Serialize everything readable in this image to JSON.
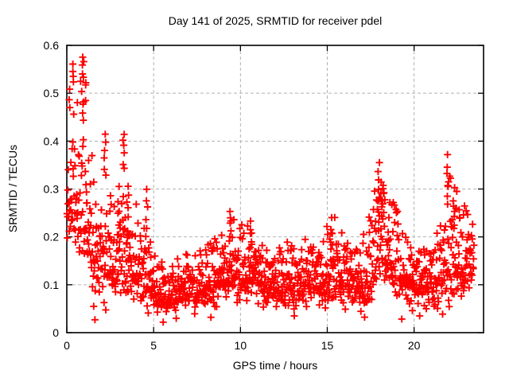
{
  "figure": {
    "background": "#ffffff",
    "text_color": "#000000",
    "border_color": "#000000"
  },
  "chart_data": {
    "type": "scatter",
    "title": "Day 141 of 2025, SRMTID for receiver pdel",
    "xlabel": "GPS time / hours",
    "ylabel": "SRMTID / TECUs",
    "xlim": [
      0,
      24
    ],
    "ylim": [
      0,
      0.6
    ],
    "xticks": [
      0,
      5,
      10,
      15,
      20
    ],
    "yticks": [
      0,
      0.1,
      0.2,
      0.3,
      0.4,
      0.5,
      0.6
    ],
    "grid": {
      "show": true,
      "color": "#b2b2b2",
      "dash": "4 3"
    },
    "legend": "none",
    "marker": {
      "shape": "plus",
      "color": "#ff0000",
      "size": 9,
      "stroke_width": 1.9
    },
    "x_data_range": [
      0.0,
      23.45
    ],
    "n_points": 1400,
    "seed": 141,
    "envelope_note": "per-hour distribution of SRMTID values read from plot: [hour, median, spread, max]",
    "envelope": [
      [
        0.0,
        0.26,
        0.07,
        0.46
      ],
      [
        0.4,
        0.29,
        0.09,
        0.5
      ],
      [
        0.9,
        0.27,
        0.11,
        0.55
      ],
      [
        1.3,
        0.2,
        0.08,
        0.44
      ],
      [
        1.7,
        0.16,
        0.06,
        0.32
      ],
      [
        2.2,
        0.15,
        0.07,
        0.38
      ],
      [
        2.7,
        0.13,
        0.05,
        0.28
      ],
      [
        3.3,
        0.15,
        0.07,
        0.38
      ],
      [
        3.8,
        0.13,
        0.05,
        0.3
      ],
      [
        4.3,
        0.1,
        0.042,
        0.22
      ],
      [
        4.8,
        0.095,
        0.045,
        0.27
      ],
      [
        5.4,
        0.075,
        0.03,
        0.16
      ],
      [
        6.2,
        0.075,
        0.028,
        0.15
      ],
      [
        7.0,
        0.085,
        0.032,
        0.17
      ],
      [
        8.0,
        0.095,
        0.04,
        0.19
      ],
      [
        9.0,
        0.11,
        0.045,
        0.21
      ],
      [
        9.5,
        0.12,
        0.055,
        0.24
      ],
      [
        10.1,
        0.115,
        0.05,
        0.23
      ],
      [
        10.7,
        0.12,
        0.045,
        0.22
      ],
      [
        11.3,
        0.1,
        0.038,
        0.18
      ],
      [
        12.1,
        0.095,
        0.038,
        0.19
      ],
      [
        13.0,
        0.1,
        0.04,
        0.19
      ],
      [
        13.7,
        0.105,
        0.042,
        0.2
      ],
      [
        14.4,
        0.1,
        0.04,
        0.19
      ],
      [
        15.2,
        0.12,
        0.055,
        0.26
      ],
      [
        15.9,
        0.105,
        0.045,
        0.21
      ],
      [
        16.6,
        0.09,
        0.038,
        0.17
      ],
      [
        17.3,
        0.1,
        0.05,
        0.22
      ],
      [
        17.9,
        0.16,
        0.075,
        0.34
      ],
      [
        18.4,
        0.155,
        0.065,
        0.3
      ],
      [
        19.0,
        0.14,
        0.055,
        0.26
      ],
      [
        19.6,
        0.115,
        0.045,
        0.21
      ],
      [
        20.3,
        0.1,
        0.04,
        0.18
      ],
      [
        21.0,
        0.095,
        0.04,
        0.18
      ],
      [
        21.6,
        0.115,
        0.05,
        0.24
      ],
      [
        22.0,
        0.16,
        0.08,
        0.35
      ],
      [
        22.4,
        0.15,
        0.07,
        0.31
      ],
      [
        22.9,
        0.125,
        0.055,
        0.27
      ],
      [
        23.45,
        0.14,
        0.05,
        0.22
      ]
    ],
    "spike_streaks_note": "distinct vertical clusters read from plot: [hour, y_low, y_high, n_points]",
    "spike_streaks": [
      [
        0.15,
        0.487,
        0.503,
        2
      ],
      [
        0.35,
        0.52,
        0.565,
        4
      ],
      [
        0.95,
        0.535,
        0.575,
        5
      ],
      [
        1.05,
        0.512,
        0.528,
        2
      ],
      [
        0.9,
        0.44,
        0.5,
        4
      ],
      [
        2.2,
        0.33,
        0.41,
        6
      ],
      [
        3.0,
        0.22,
        0.3,
        4
      ],
      [
        3.25,
        0.34,
        0.42,
        6
      ],
      [
        3.5,
        0.2,
        0.31,
        7
      ],
      [
        4.6,
        0.2,
        0.3,
        6
      ],
      [
        9.4,
        0.19,
        0.253,
        6
      ],
      [
        10.6,
        0.18,
        0.228,
        5
      ],
      [
        15.25,
        0.18,
        0.235,
        5
      ],
      [
        17.95,
        0.24,
        0.352,
        8
      ],
      [
        18.15,
        0.2,
        0.3,
        6
      ],
      [
        21.95,
        0.27,
        0.366,
        7
      ],
      [
        22.3,
        0.22,
        0.3,
        5
      ]
    ],
    "low_outliers": [
      [
        1.55,
        0.055
      ],
      [
        1.62,
        0.027
      ],
      [
        5.55,
        0.022
      ],
      [
        6.3,
        0.03
      ],
      [
        8.3,
        0.032
      ],
      [
        13.1,
        0.035
      ],
      [
        19.9,
        0.046
      ],
      [
        20.7,
        0.05
      ]
    ]
  }
}
